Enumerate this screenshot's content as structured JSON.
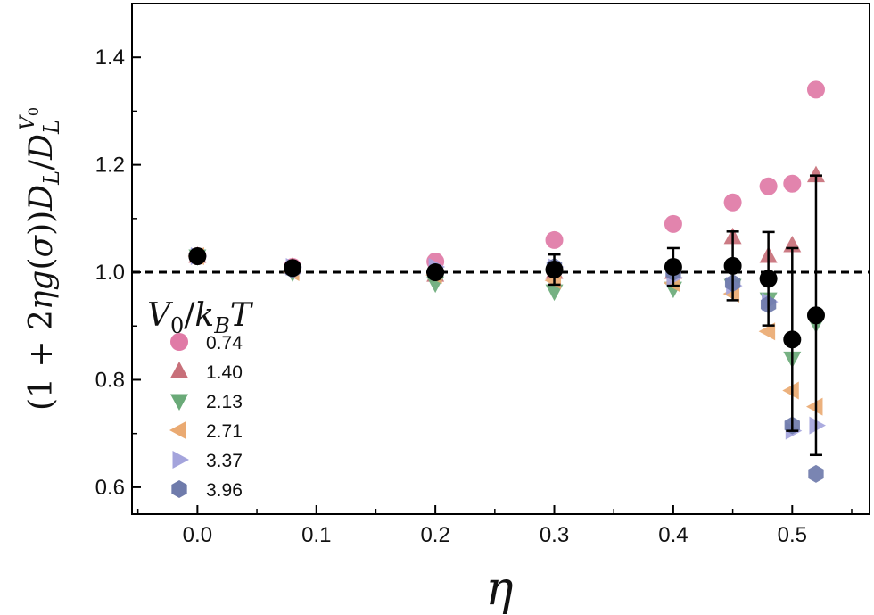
{
  "chart_data": {
    "type": "scatter",
    "xlabel": "η",
    "ylabel": "(1+2ηg(σ))D_L/D_L^{V_0}",
    "xlim": [
      -0.055,
      0.565
    ],
    "ylim": [
      0.55,
      1.5
    ],
    "x_ticks": [
      "0.0",
      "0.1",
      "0.2",
      "0.3",
      "0.4",
      "0.5"
    ],
    "y_ticks": [
      "0.6",
      "0.8",
      "1.0",
      "1.2",
      "1.4"
    ],
    "reference_line": {
      "y": 1.0,
      "style": "dashed",
      "color": "#000000"
    },
    "legend": {
      "title": "V₀/k_BT",
      "placement": "lower-left"
    },
    "series": [
      {
        "name": "0.74",
        "marker": "circle",
        "color": "#e07aa6",
        "points": [
          [
            0.0,
            1.03
          ],
          [
            0.08,
            1.01
          ],
          [
            0.2,
            1.02
          ],
          [
            0.3,
            1.06
          ],
          [
            0.4,
            1.09
          ],
          [
            0.45,
            1.13
          ],
          [
            0.48,
            1.16
          ],
          [
            0.5,
            1.165
          ],
          [
            0.52,
            1.34
          ]
        ]
      },
      {
        "name": "1.40",
        "marker": "triangle-up",
        "color": "#c8707a",
        "points": [
          [
            0.0,
            1.03
          ],
          [
            0.08,
            1.01
          ],
          [
            0.2,
            0.995
          ],
          [
            0.3,
            1.0
          ],
          [
            0.4,
            1.0
          ],
          [
            0.45,
            1.065
          ],
          [
            0.48,
            1.03
          ],
          [
            0.5,
            1.05
          ],
          [
            0.52,
            1.18
          ]
        ]
      },
      {
        "name": "2.13",
        "marker": "triangle-down",
        "color": "#6aaa78",
        "points": [
          [
            0.0,
            1.03
          ],
          [
            0.08,
            1.0
          ],
          [
            0.2,
            0.98
          ],
          [
            0.3,
            0.965
          ],
          [
            0.4,
            0.97
          ],
          [
            0.45,
            0.975
          ],
          [
            0.48,
            0.95
          ],
          [
            0.5,
            0.84
          ],
          [
            0.52,
            0.905
          ]
        ]
      },
      {
        "name": "2.71",
        "marker": "triangle-left",
        "color": "#eaaa72",
        "points": [
          [
            0.0,
            1.03
          ],
          [
            0.08,
            1.0
          ],
          [
            0.2,
            0.995
          ],
          [
            0.3,
            0.985
          ],
          [
            0.4,
            0.98
          ],
          [
            0.45,
            0.96
          ],
          [
            0.48,
            0.89
          ],
          [
            0.5,
            0.78
          ],
          [
            0.52,
            0.75
          ]
        ]
      },
      {
        "name": "3.37",
        "marker": "triangle-right",
        "color": "#a4a4dc",
        "points": [
          [
            0.0,
            1.03
          ],
          [
            0.08,
            1.01
          ],
          [
            0.2,
            1.01
          ],
          [
            0.3,
            1.01
          ],
          [
            0.4,
            0.99
          ],
          [
            0.45,
            0.975
          ],
          [
            0.48,
            0.945
          ],
          [
            0.5,
            0.705
          ],
          [
            0.52,
            0.715
          ]
        ]
      },
      {
        "name": "3.96",
        "marker": "hexagon",
        "color": "#6f7bab",
        "points": [
          [
            0.0,
            1.03
          ],
          [
            0.08,
            1.005
          ],
          [
            0.2,
            1.0
          ],
          [
            0.3,
            1.01
          ],
          [
            0.4,
            1.0
          ],
          [
            0.45,
            0.98
          ],
          [
            0.48,
            0.94
          ],
          [
            0.5,
            0.715
          ],
          [
            0.52,
            0.625
          ]
        ]
      }
    ],
    "mean_series": {
      "marker": "circle",
      "color": "#000000",
      "points": [
        {
          "x": 0.0,
          "y": 1.03,
          "err": 0.0
        },
        {
          "x": 0.08,
          "y": 1.008,
          "err": 0.0
        },
        {
          "x": 0.2,
          "y": 1.0,
          "err": 0.0
        },
        {
          "x": 0.3,
          "y": 1.005,
          "err": 0.028
        },
        {
          "x": 0.4,
          "y": 1.01,
          "err": 0.035
        },
        {
          "x": 0.45,
          "y": 1.012,
          "err": 0.064
        },
        {
          "x": 0.48,
          "y": 0.988,
          "err": 0.087
        },
        {
          "x": 0.5,
          "y": 0.875,
          "err": 0.17
        },
        {
          "x": 0.52,
          "y": 0.92,
          "err": 0.26
        }
      ]
    }
  }
}
